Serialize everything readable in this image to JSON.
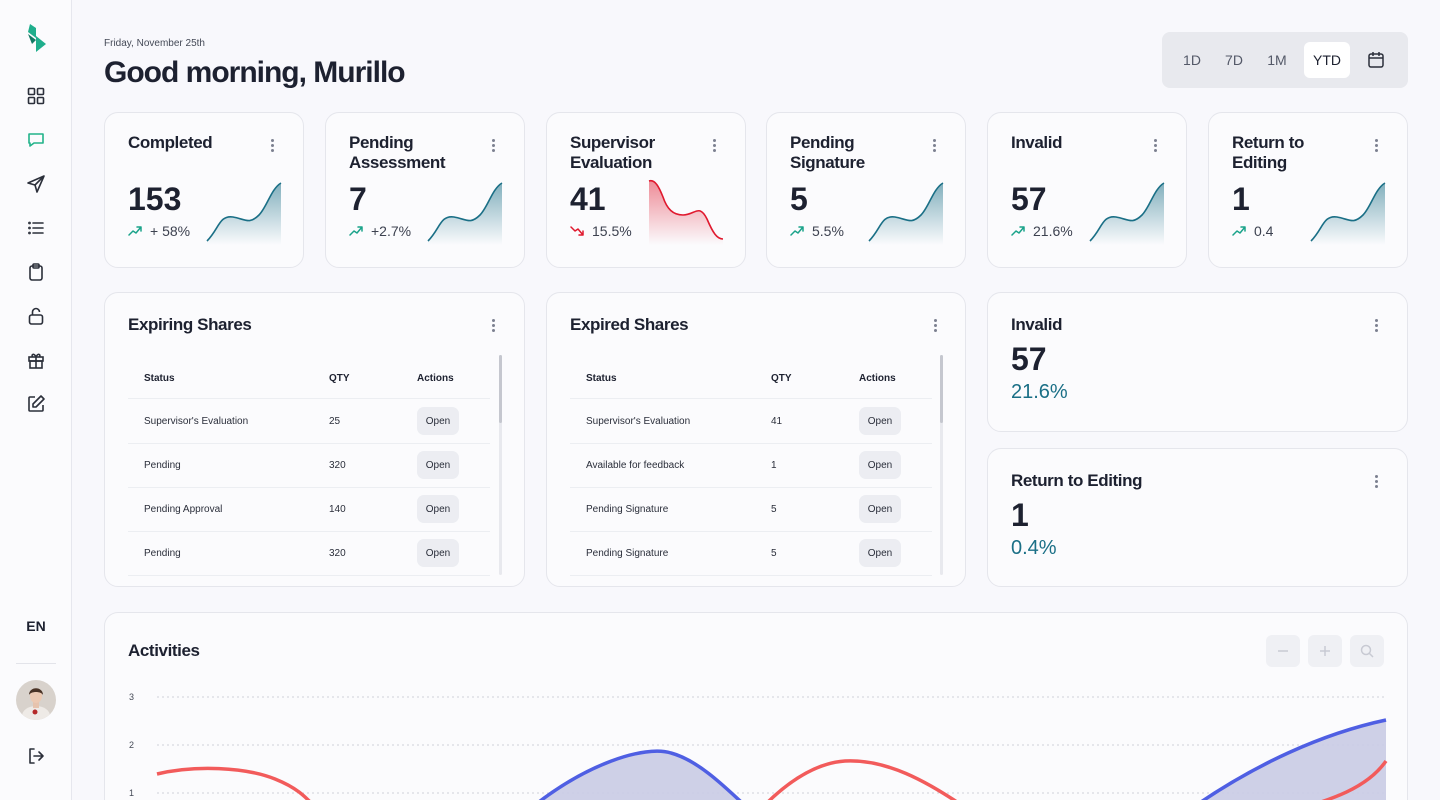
{
  "header": {
    "date": "Friday, November 25th",
    "greeting": "Good morning, Murillo",
    "ranges": [
      "1D",
      "7D",
      "1M",
      "YTD"
    ],
    "active_range": "YTD"
  },
  "sidebar": {
    "items": [
      {
        "icon": "grid-icon"
      },
      {
        "icon": "chat-icon"
      },
      {
        "icon": "send-icon"
      },
      {
        "icon": "list-icon"
      },
      {
        "icon": "clipboard-icon"
      },
      {
        "icon": "unlock-icon"
      },
      {
        "icon": "gift-icon"
      },
      {
        "icon": "edit-icon"
      }
    ],
    "language": "EN",
    "logout_icon": "logout-icon"
  },
  "stats": [
    {
      "title": "Completed",
      "value": "153",
      "change": "+ 58%",
      "direction": "up",
      "color": "#1a6f86"
    },
    {
      "title": "Pending Assessment",
      "value": "7",
      "change": "+2.7%",
      "direction": "up",
      "color": "#1a6f86"
    },
    {
      "title": "Supervisor Evaluation",
      "value": "41",
      "change": "15.5%",
      "direction": "down",
      "color": "#e0192e"
    },
    {
      "title": "Pending Signature",
      "value": "5",
      "change": "5.5%",
      "direction": "up",
      "color": "#1a6f86"
    },
    {
      "title": "Invalid",
      "value": "57",
      "change": "21.6%",
      "direction": "up",
      "color": "#1a6f86"
    },
    {
      "title": "Return to Editing",
      "value": "1",
      "change": "0.4",
      "direction": "up",
      "color": "#1a6f86"
    }
  ],
  "expiring": {
    "title": "Expiring Shares",
    "headers": {
      "status": "Status",
      "qty": "QTY",
      "actions": "Actions"
    },
    "rows": [
      {
        "status": "Supervisor's Evaluation",
        "qty": "25",
        "action": "Open"
      },
      {
        "status": "Pending",
        "qty": "320",
        "action": "Open"
      },
      {
        "status": "Pending Approval",
        "qty": "140",
        "action": "Open"
      },
      {
        "status": "Pending",
        "qty": "320",
        "action": "Open"
      }
    ]
  },
  "expired": {
    "title": "Expired Shares",
    "headers": {
      "status": "Status",
      "qty": "QTY",
      "actions": "Actions"
    },
    "rows": [
      {
        "status": "Supervisor's Evaluation",
        "qty": "41",
        "action": "Open"
      },
      {
        "status": "Available for feedback",
        "qty": "1",
        "action": "Open"
      },
      {
        "status": "Pending Signature",
        "qty": "5",
        "action": "Open"
      },
      {
        "status": "Pending Signature",
        "qty": "5",
        "action": "Open"
      }
    ]
  },
  "invalid_card": {
    "title": "Invalid",
    "value": "57",
    "pct": "21.6%"
  },
  "return_card": {
    "title": "Return to Editing",
    "value": "1",
    "pct": "0.4%"
  },
  "activities": {
    "title": "Activities"
  },
  "chart_data": {
    "type": "area",
    "ylim": [
      0,
      3
    ],
    "yticks": [
      "3",
      "2",
      "1"
    ],
    "grid": true,
    "series": [
      {
        "color": "#f25b5b",
        "area": false
      },
      {
        "color": "#4f5fe3",
        "area": true
      }
    ]
  },
  "colors": {
    "accent": "#1a6f86",
    "positive": "#1aa38a",
    "negative": "#e0192e",
    "chat_active": "#22b38a"
  }
}
